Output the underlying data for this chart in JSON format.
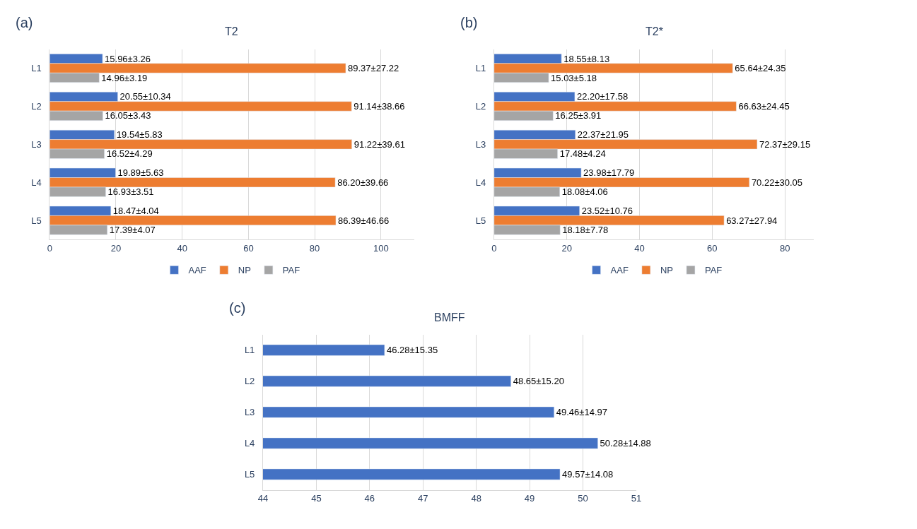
{
  "chart_data": [
    {
      "type": "bar",
      "orientation": "horizontal",
      "title": "T2",
      "annotations": [
        "(a)"
      ],
      "categories": [
        "L1",
        "L2",
        "L3",
        "L4",
        "L5"
      ],
      "xlim": [
        0,
        110
      ],
      "xticks": [
        0,
        20,
        40,
        60,
        80,
        100
      ],
      "grid": "x",
      "legend": "bottom",
      "series": [
        {
          "name": "AAF",
          "color": "#4472c4",
          "values": [
            15.96,
            20.55,
            19.54,
            19.89,
            18.47
          ],
          "value_labels": [
            "15.96±3.26",
            "20.55±10.34",
            "19.54±5.83",
            "19.89±5.63",
            "18.47±4.04"
          ]
        },
        {
          "name": "NP",
          "color": "#ed7d31",
          "values": [
            89.37,
            91.14,
            91.22,
            86.2,
            86.39
          ],
          "value_labels": [
            "89.37±27.22",
            "91.14±38.66",
            "91.22±39.61",
            "86.20±39.66",
            "86.39±46.66"
          ]
        },
        {
          "name": "PAF",
          "color": "#a5a5a5",
          "values": [
            14.96,
            16.05,
            16.52,
            16.93,
            17.39
          ],
          "value_labels": [
            "14.96±3.19",
            "16.05±3.43",
            "16.52±4.29",
            "16.93±3.51",
            "17.39±4.07"
          ]
        }
      ]
    },
    {
      "type": "bar",
      "orientation": "horizontal",
      "title": "T2*",
      "annotations": [
        "(b)"
      ],
      "categories": [
        "L1",
        "L2",
        "L3",
        "L4",
        "L5"
      ],
      "xlim": [
        0,
        88
      ],
      "xticks": [
        0,
        20,
        40,
        60,
        80
      ],
      "grid": "x",
      "legend": "bottom",
      "series": [
        {
          "name": "AAF",
          "color": "#4472c4",
          "values": [
            18.55,
            22.2,
            22.37,
            23.98,
            23.52
          ],
          "value_labels": [
            "18.55±8.13",
            "22.20±17.58",
            "22.37±21.95",
            "23.98±17.79",
            "23.52±10.76"
          ]
        },
        {
          "name": "NP",
          "color": "#ed7d31",
          "values": [
            65.64,
            66.63,
            72.37,
            70.22,
            63.27
          ],
          "value_labels": [
            "65.64±24.35",
            "66.63±24.45",
            "72.37±29.15",
            "70.22±30.05",
            "63.27±27.94"
          ]
        },
        {
          "name": "PAF",
          "color": "#a5a5a5",
          "values": [
            15.03,
            16.25,
            17.48,
            18.08,
            18.18
          ],
          "value_labels": [
            "15.03±5.18",
            "16.25±3.91",
            "17.48±4.24",
            "18.08±4.06",
            "18.18±7.78"
          ]
        }
      ]
    },
    {
      "type": "bar",
      "orientation": "horizontal",
      "title": "BMFF",
      "annotations": [
        "(c)"
      ],
      "categories": [
        "L1",
        "L2",
        "L3",
        "L4",
        "L5"
      ],
      "xlim": [
        44,
        51
      ],
      "xticks": [
        44,
        45,
        46,
        47,
        48,
        49,
        50,
        51
      ],
      "grid": "x",
      "series": [
        {
          "color": "#4472c4",
          "values": [
            46.28,
            48.65,
            49.46,
            50.28,
            49.57
          ],
          "value_labels": [
            "46.28±15.35",
            "48.65±15.20",
            "49.46±14.97",
            "50.28±14.88",
            "49.57±14.08"
          ]
        }
      ]
    }
  ]
}
